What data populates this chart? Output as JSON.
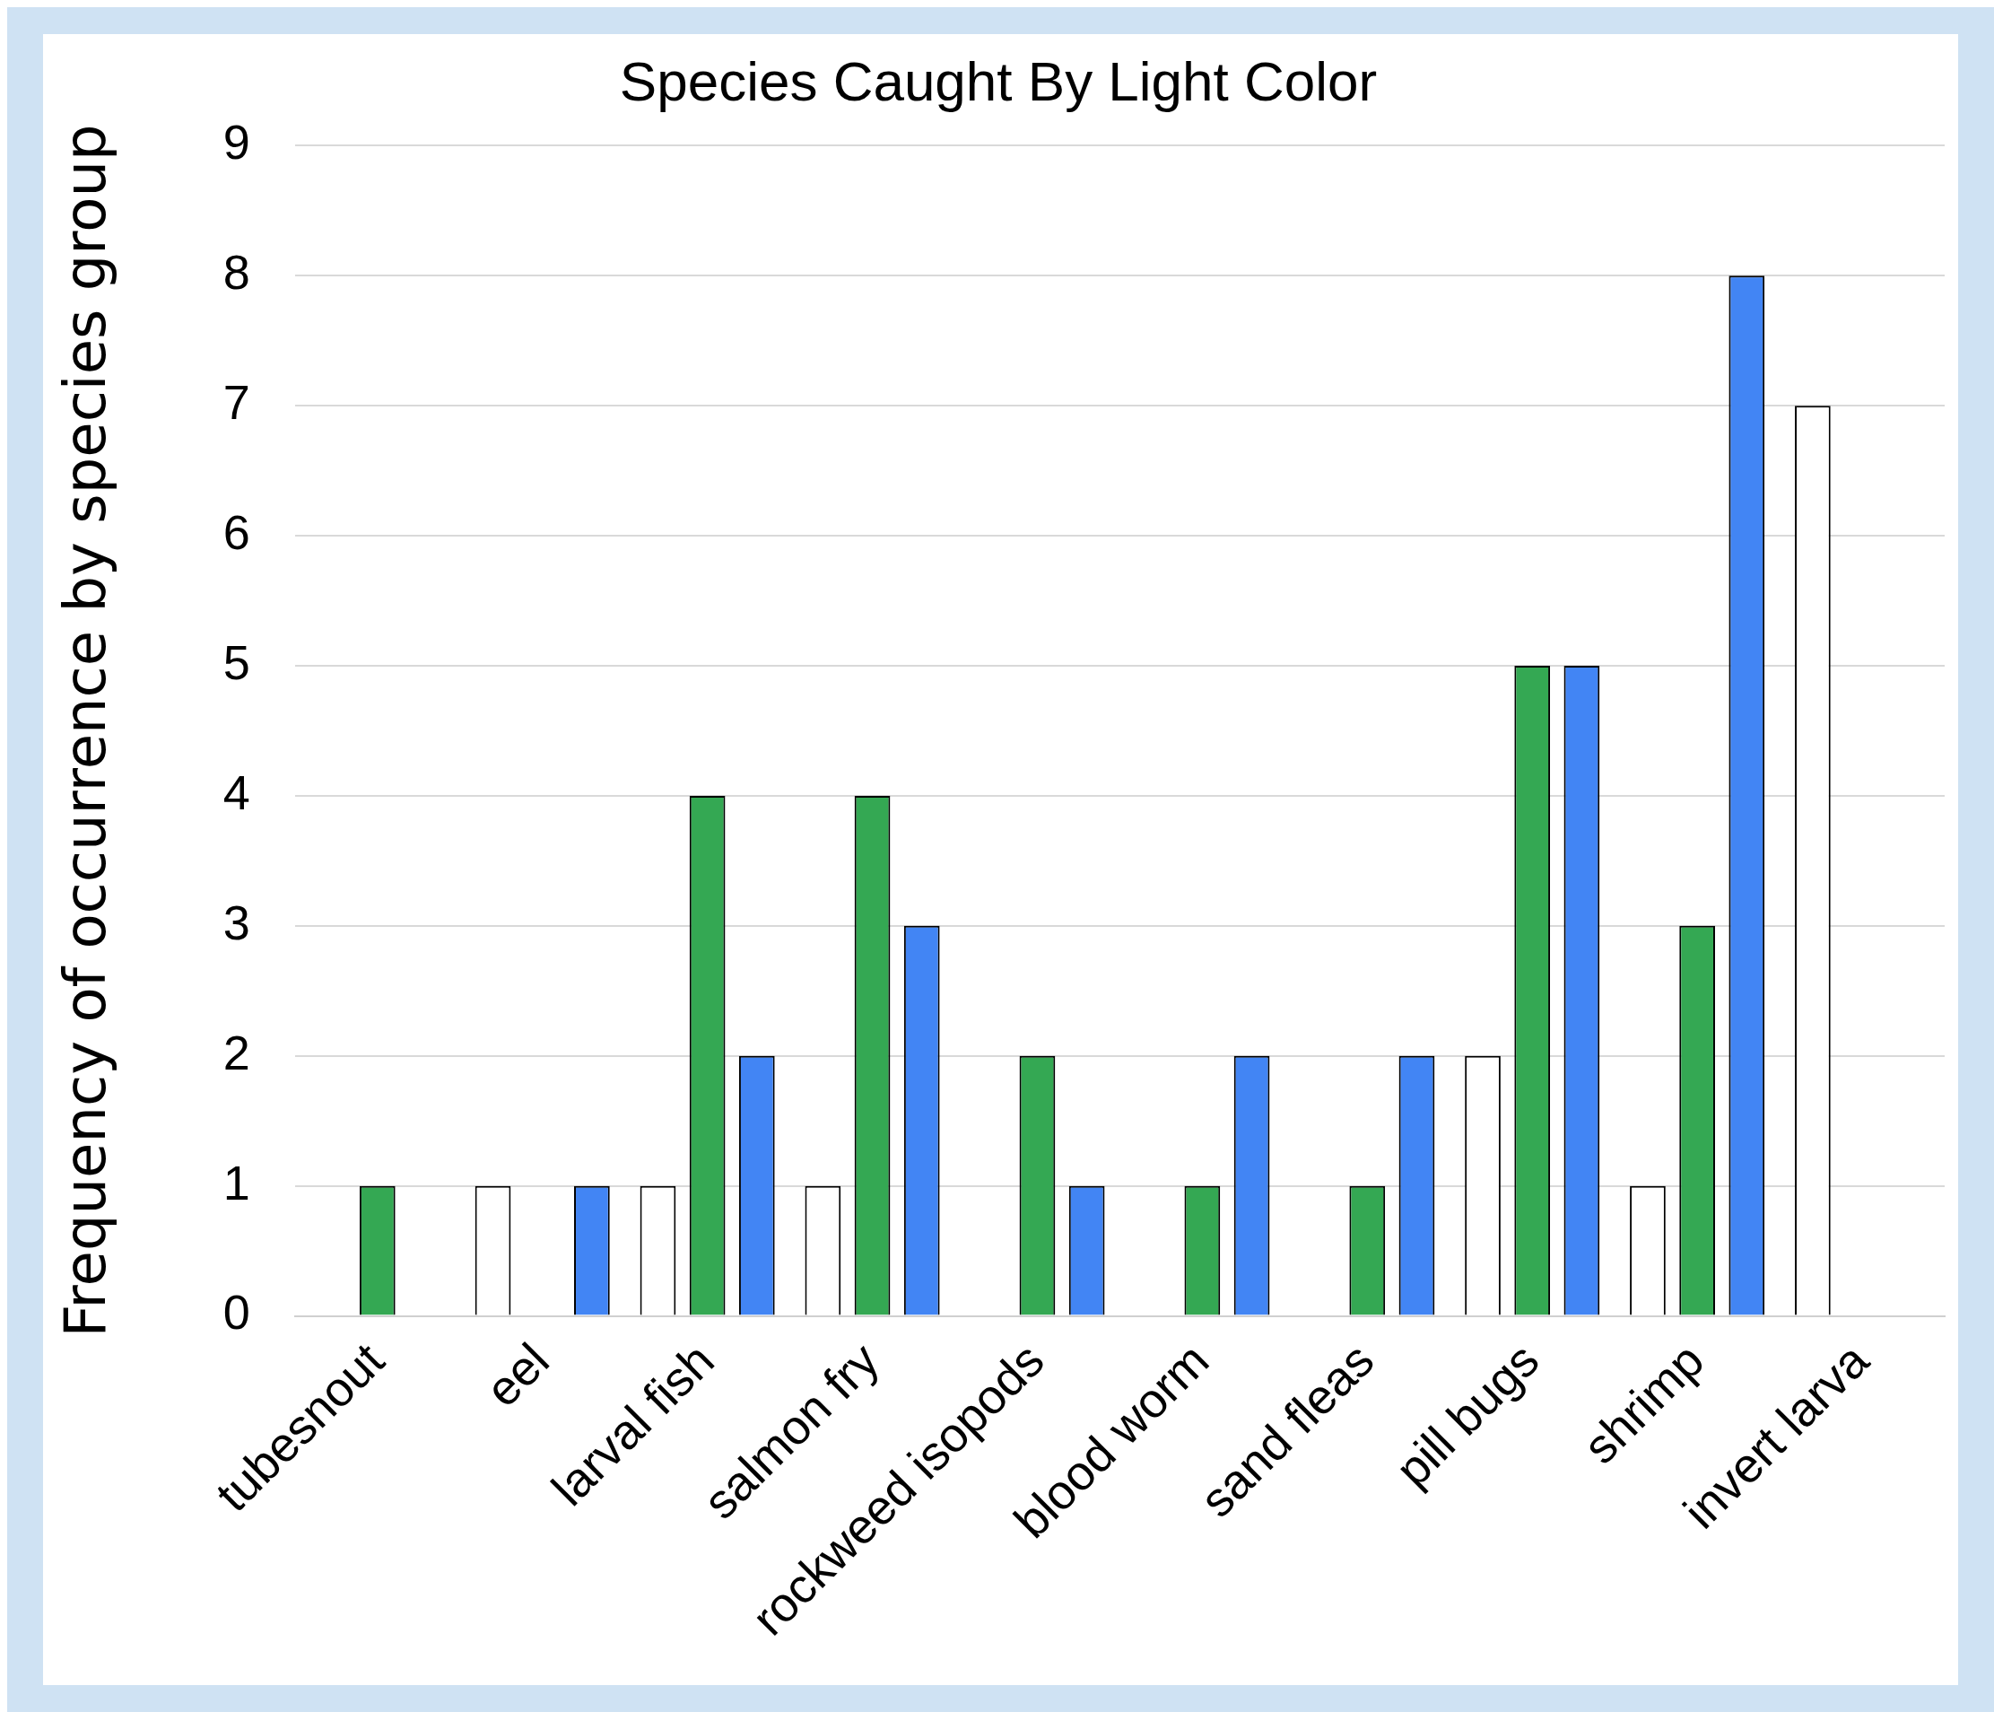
{
  "chart_data": {
    "type": "bar",
    "title": "Species Caught By Light Color",
    "ylabel": "Frequency of occurrence by species group",
    "categories": [
      "tubesnout",
      "eel",
      "larval fish",
      "salmon fry",
      "rockweed isopods",
      "blood worm",
      "sand fleas",
      "pill bugs",
      "shrimp",
      "invert larva"
    ],
    "series": [
      {
        "color": "#ffffff",
        "values": [
          0,
          1,
          1,
          1,
          0,
          0,
          0,
          2,
          1,
          7
        ]
      },
      {
        "color": "#34a853",
        "values": [
          1,
          0,
          4,
          4,
          2,
          1,
          1,
          5,
          3,
          0
        ]
      },
      {
        "color": "#4285f4",
        "values": [
          0,
          1,
          2,
          3,
          1,
          2,
          2,
          5,
          8,
          0
        ]
      }
    ],
    "ylim": [
      0,
      9
    ],
    "yticks": [
      0,
      1,
      2,
      3,
      4,
      5,
      6,
      7,
      8,
      9
    ],
    "grid": "y",
    "legend": false
  }
}
